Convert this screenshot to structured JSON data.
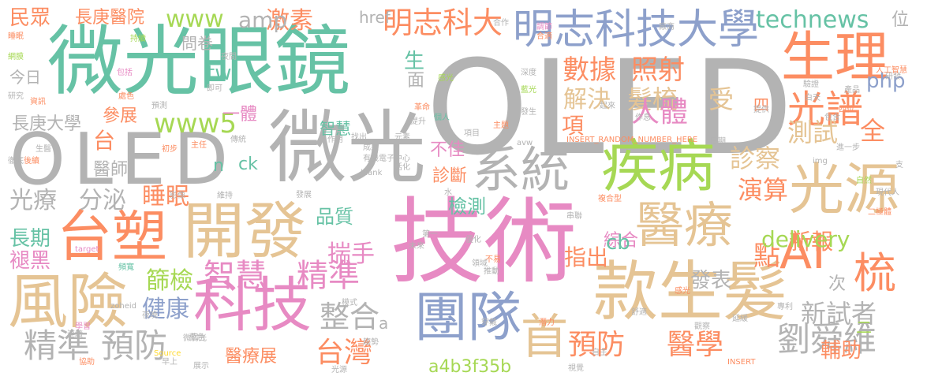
{
  "palette": {
    "gray": "#b3b3b3",
    "green": "#66c2a5",
    "orange": "#fc8d62",
    "blue": "#8da0cb",
    "pink": "#e78ac3",
    "lime": "#a6d854",
    "yellow": "#ffd92f",
    "tan": "#e5c494"
  },
  "words": [
    "OLED",
    "技術",
    "微光眼鏡",
    "微光",
    "OLED",
    "明志科技大學",
    "開發",
    "台塑",
    "風險",
    "款生髮",
    "疾病",
    "光源",
    "醫療",
    "團隊",
    "首",
    "科技",
    "系統",
    "生理",
    "AI",
    "梳",
    "光譜",
    "智慧",
    "精準",
    "精準",
    "預防",
    "預防",
    "醫學",
    "劉舜維",
    "整合",
    "台灣",
    "明志科大",
    "激素",
    "technews",
    "www",
    "www5",
    "數據",
    "照射",
    "解決",
    "項",
    "髮梳",
    "人體",
    "受",
    "診察",
    "演算",
    "測試",
    "全",
    "新報",
    "點",
    "delivery",
    "指出",
    "揣手",
    "篩檢",
    "健康",
    "新試者",
    "輔助",
    "光療",
    "分泌",
    "睡眠",
    "長期",
    "褪黑",
    "民眾",
    "長庚醫院",
    "長庚大學",
    "參展",
    "醫師",
    "台",
    "品質",
    "檢測",
    "綜合",
    "發表",
    "次",
    "php",
    "amp",
    "tw",
    "cb",
    "ck",
    "n",
    "面",
    "生",
    "問卷",
    "今日",
    "一體",
    "智慧",
    "不佳",
    "診斷",
    "a4b3f35b",
    "醫療展",
    "二",
    "位",
    "四",
    "href",
    "a",
    "INSERT_RANDOM_NUMBER_HERE",
    "_blank",
    "target",
    "Source",
    "持續",
    "睡眠",
    "網膜",
    "研究",
    "資訊",
    "包括",
    "處色",
    "即可",
    "夜間",
    "預測",
    "合適",
    "感光",
    "起來",
    "廠商",
    "驗證",
    "白天",
    "產品",
    "提供",
    "四位",
    "進一步",
    "日期",
    "現代人",
    "二極體",
    "複合型",
    "第一",
    "串聯",
    "潛力",
    "延緩",
    "傳統",
    "作用",
    "提升",
    "主題",
    "研發",
    "後續",
    "徹底",
    "初步",
    "主任",
    "影像",
    "發展",
    "水",
    "未來",
    "模式",
    "推動",
    "感光",
    "專利",
    "夜晚",
    "不易",
    "藍色",
    "維持",
    "活化",
    "有機電子中心",
    "成果",
    "元素",
    "項目",
    "包含",
    "找出",
    "革命",
    "生醫",
    "作息",
    "藍光",
    "深度",
    "調節",
    "合作",
    "發生",
    "個人",
    "頻寬",
    "光源",
    "zoheid",
    "avw",
    "img",
    "INSERT",
    "人工智慧",
    "自然",
    "支",
    "優化",
    "連續",
    "學習",
    "協助",
    "微弱光",
    "早上",
    "展示",
    "穿戴",
    "自主",
    "視覺",
    "舒適",
    "觀察",
    "趨勢",
    "領域",
    "擴大"
  ]
}
